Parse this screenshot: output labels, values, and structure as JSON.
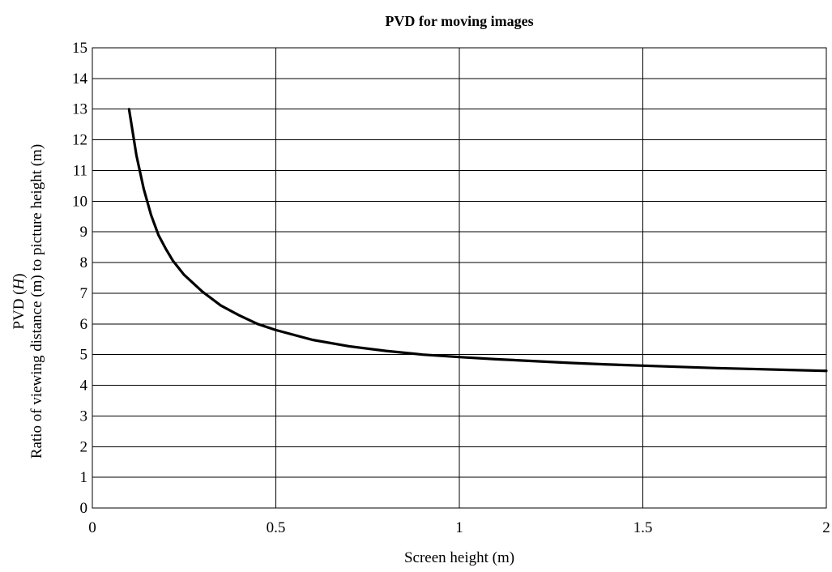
{
  "chart_data": {
    "type": "line",
    "title": "PVD for moving images",
    "xlabel": "Screen height (m)",
    "ylabel_line1_prefix": "PVD (",
    "ylabel_line1_italic": "H",
    "ylabel_line1_suffix": ")",
    "ylabel_line2": "Ratio of viewing distance (m) to picture height (m)",
    "xlim": [
      0,
      2
    ],
    "ylim": [
      0,
      15
    ],
    "x_ticks": [
      0,
      0.5,
      1,
      1.5,
      2
    ],
    "x_tick_labels": [
      "0",
      "0.5",
      "1",
      "1.5",
      "2"
    ],
    "y_ticks": [
      0,
      1,
      2,
      3,
      4,
      5,
      6,
      7,
      8,
      9,
      10,
      11,
      12,
      13,
      14,
      15
    ],
    "y_tick_labels": [
      "0",
      "1",
      "2",
      "3",
      "4",
      "5",
      "6",
      "7",
      "8",
      "9",
      "10",
      "11",
      "12",
      "13",
      "14",
      "15"
    ],
    "grid": true,
    "legend": "none",
    "series": [
      {
        "color": "#000000",
        "x": [
          0.1,
          0.12,
          0.14,
          0.16,
          0.18,
          0.2,
          0.22,
          0.25,
          0.3,
          0.35,
          0.4,
          0.45,
          0.5,
          0.6,
          0.7,
          0.8,
          0.9,
          1.0,
          1.1,
          1.2,
          1.3,
          1.4,
          1.5,
          1.6,
          1.7,
          1.8,
          1.9,
          2.0
        ],
        "y": [
          13.0,
          11.5,
          10.4,
          9.55,
          8.9,
          8.45,
          8.05,
          7.6,
          7.05,
          6.6,
          6.28,
          6.0,
          5.8,
          5.48,
          5.27,
          5.12,
          5.0,
          4.92,
          4.85,
          4.79,
          4.73,
          4.68,
          4.64,
          4.6,
          4.56,
          4.53,
          4.5,
          4.47
        ]
      }
    ]
  }
}
